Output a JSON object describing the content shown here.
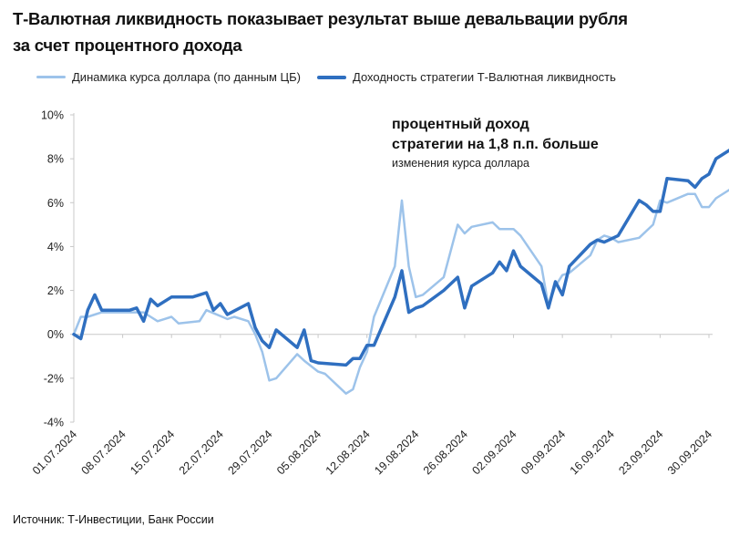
{
  "title_line1": "Т-Валютная ликвидность показывает результат выше девальвации рубля",
  "title_line2": "за счет процентного дохода",
  "source": "Источник: Т-Инвестиции, Банк России",
  "annotation": {
    "line1": "процентный доход",
    "line2": "стратегии на 1,8 п.п. больше",
    "line3": "изменения курса доллара"
  },
  "colors": {
    "light_series": "#9dc3ea",
    "dark_series": "#2f6fc0",
    "axis": "#c8c8c8"
  },
  "chart_data": {
    "type": "line",
    "title": "Т-Валютная ликвидность показывает результат выше девальвации рубля за счет процентного дохода",
    "xlabel": "",
    "ylabel": "",
    "ylim": [
      -4,
      10
    ],
    "yticks": [
      "-4%",
      "-2%",
      "0%",
      "2%",
      "4%",
      "6%",
      "8%",
      "10%"
    ],
    "ytick_values": [
      -4,
      -2,
      0,
      2,
      4,
      6,
      8,
      10
    ],
    "x_range": [
      "2024-07-01",
      "2024-09-30"
    ],
    "xticks": [
      "01.07.2024",
      "08.07.2024",
      "15.07.2024",
      "22.07.2024",
      "29.07.2024",
      "05.08.2024",
      "12.08.2024",
      "19.08.2024",
      "26.08.2024",
      "02.09.2024",
      "09.09.2024",
      "16.09.2024",
      "23.09.2024",
      "30.09.2024"
    ],
    "legend_position": "top",
    "grid": false,
    "series": [
      {
        "name": "Динамика курса доллара (по данным ЦБ)",
        "color": "#9dc3ea",
        "points": [
          [
            "2024-07-01",
            0.0
          ],
          [
            "2024-07-02",
            0.8
          ],
          [
            "2024-07-03",
            0.8
          ],
          [
            "2024-07-04",
            0.9
          ],
          [
            "2024-07-05",
            1.0
          ],
          [
            "2024-07-08",
            1.0
          ],
          [
            "2024-07-09",
            1.0
          ],
          [
            "2024-07-10",
            1.0
          ],
          [
            "2024-07-11",
            1.0
          ],
          [
            "2024-07-12",
            0.8
          ],
          [
            "2024-07-13",
            0.6
          ],
          [
            "2024-07-14",
            0.7
          ],
          [
            "2024-07-15",
            0.8
          ],
          [
            "2024-07-16",
            0.5
          ],
          [
            "2024-07-19",
            0.6
          ],
          [
            "2024-07-20",
            1.1
          ],
          [
            "2024-07-23",
            0.7
          ],
          [
            "2024-07-24",
            0.8
          ],
          [
            "2024-07-26",
            0.6
          ],
          [
            "2024-07-27",
            0.0
          ],
          [
            "2024-07-28",
            -0.8
          ],
          [
            "2024-07-29",
            -2.1
          ],
          [
            "2024-07-30",
            -2.0
          ],
          [
            "2024-08-02",
            -0.9
          ],
          [
            "2024-08-03",
            -1.2
          ],
          [
            "2024-08-05",
            -1.7
          ],
          [
            "2024-08-06",
            -1.8
          ],
          [
            "2024-08-09",
            -2.7
          ],
          [
            "2024-08-10",
            -2.5
          ],
          [
            "2024-08-11",
            -1.5
          ],
          [
            "2024-08-12",
            -0.8
          ],
          [
            "2024-08-13",
            0.8
          ],
          [
            "2024-08-16",
            3.1
          ],
          [
            "2024-08-17",
            6.1
          ],
          [
            "2024-08-18",
            3.1
          ],
          [
            "2024-08-19",
            1.7
          ],
          [
            "2024-08-20",
            1.8
          ],
          [
            "2024-08-23",
            2.6
          ],
          [
            "2024-08-25",
            5.0
          ],
          [
            "2024-08-26",
            4.6
          ],
          [
            "2024-08-27",
            4.9
          ],
          [
            "2024-08-30",
            5.1
          ],
          [
            "2024-08-31",
            4.8
          ],
          [
            "2024-09-02",
            4.8
          ],
          [
            "2024-09-03",
            4.5
          ],
          [
            "2024-09-06",
            3.1
          ],
          [
            "2024-09-07",
            1.3
          ],
          [
            "2024-09-08",
            2.2
          ],
          [
            "2024-09-09",
            2.7
          ],
          [
            "2024-09-10",
            2.8
          ],
          [
            "2024-09-13",
            3.6
          ],
          [
            "2024-09-14",
            4.3
          ],
          [
            "2024-09-15",
            4.5
          ],
          [
            "2024-09-16",
            4.4
          ],
          [
            "2024-09-17",
            4.2
          ],
          [
            "2024-09-20",
            4.4
          ],
          [
            "2024-09-22",
            5.0
          ],
          [
            "2024-09-23",
            6.1
          ],
          [
            "2024-09-24",
            6.0
          ],
          [
            "2024-09-27",
            6.4
          ],
          [
            "2024-09-28",
            6.4
          ],
          [
            "2024-09-29",
            5.8
          ],
          [
            "2024-09-30",
            5.8
          ],
          [
            "2024-10-01",
            6.2
          ],
          [
            "2024-10-04",
            6.8
          ]
        ]
      },
      {
        "name": "Доходность стратегии Т-Валютная ликвидность",
        "color": "#2f6fc0",
        "points": [
          [
            "2024-07-01",
            0.0
          ],
          [
            "2024-07-02",
            -0.2
          ],
          [
            "2024-07-03",
            1.1
          ],
          [
            "2024-07-04",
            1.8
          ],
          [
            "2024-07-05",
            1.1
          ],
          [
            "2024-07-08",
            1.1
          ],
          [
            "2024-07-09",
            1.1
          ],
          [
            "2024-07-10",
            1.2
          ],
          [
            "2024-07-11",
            0.6
          ],
          [
            "2024-07-12",
            1.6
          ],
          [
            "2024-07-13",
            1.3
          ],
          [
            "2024-07-15",
            1.7
          ],
          [
            "2024-07-17",
            1.7
          ],
          [
            "2024-07-18",
            1.7
          ],
          [
            "2024-07-19",
            1.8
          ],
          [
            "2024-07-20",
            1.9
          ],
          [
            "2024-07-21",
            1.1
          ],
          [
            "2024-07-22",
            1.4
          ],
          [
            "2024-07-23",
            0.9
          ],
          [
            "2024-07-26",
            1.4
          ],
          [
            "2024-07-27",
            0.3
          ],
          [
            "2024-07-28",
            -0.3
          ],
          [
            "2024-07-29",
            -0.6
          ],
          [
            "2024-07-30",
            0.2
          ],
          [
            "2024-08-02",
            -0.6
          ],
          [
            "2024-08-03",
            0.2
          ],
          [
            "2024-08-04",
            -1.2
          ],
          [
            "2024-08-05",
            -1.3
          ],
          [
            "2024-08-09",
            -1.4
          ],
          [
            "2024-08-10",
            -1.1
          ],
          [
            "2024-08-11",
            -1.1
          ],
          [
            "2024-08-12",
            -0.5
          ],
          [
            "2024-08-13",
            -0.5
          ],
          [
            "2024-08-16",
            1.7
          ],
          [
            "2024-08-17",
            2.9
          ],
          [
            "2024-08-18",
            1.0
          ],
          [
            "2024-08-19",
            1.2
          ],
          [
            "2024-08-20",
            1.3
          ],
          [
            "2024-08-23",
            2.0
          ],
          [
            "2024-08-25",
            2.6
          ],
          [
            "2024-08-26",
            1.2
          ],
          [
            "2024-08-27",
            2.2
          ],
          [
            "2024-08-30",
            2.8
          ],
          [
            "2024-08-31",
            3.3
          ],
          [
            "2024-09-01",
            2.9
          ],
          [
            "2024-09-02",
            3.8
          ],
          [
            "2024-09-03",
            3.1
          ],
          [
            "2024-09-06",
            2.3
          ],
          [
            "2024-09-07",
            1.2
          ],
          [
            "2024-09-08",
            2.4
          ],
          [
            "2024-09-09",
            1.8
          ],
          [
            "2024-09-10",
            3.1
          ],
          [
            "2024-09-13",
            4.1
          ],
          [
            "2024-09-14",
            4.3
          ],
          [
            "2024-09-15",
            4.2
          ],
          [
            "2024-09-17",
            4.5
          ],
          [
            "2024-09-20",
            6.1
          ],
          [
            "2024-09-21",
            5.9
          ],
          [
            "2024-09-22",
            5.6
          ],
          [
            "2024-09-23",
            5.6
          ],
          [
            "2024-09-24",
            7.1
          ],
          [
            "2024-09-27",
            7.0
          ],
          [
            "2024-09-28",
            6.7
          ],
          [
            "2024-09-29",
            7.1
          ],
          [
            "2024-09-30",
            7.3
          ],
          [
            "2024-10-01",
            8.0
          ],
          [
            "2024-10-04",
            8.6
          ]
        ]
      }
    ]
  }
}
